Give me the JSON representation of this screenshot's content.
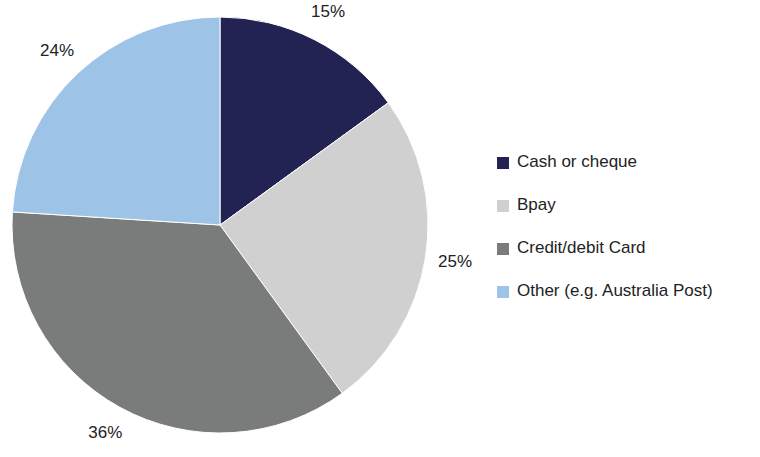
{
  "chart_data": {
    "type": "pie",
    "categories": [
      "Cash or cheque",
      "Bpay",
      "Credit/debit Card",
      "Other (e.g. Australia Post)"
    ],
    "values": [
      15,
      25,
      36,
      24
    ],
    "value_labels": [
      "15%",
      "25%",
      "36%",
      "24%"
    ],
    "colors": [
      "#222253",
      "#d0d0d0",
      "#7a7c7b",
      "#9dc3e6"
    ],
    "data_labels": true,
    "legend": "right"
  }
}
